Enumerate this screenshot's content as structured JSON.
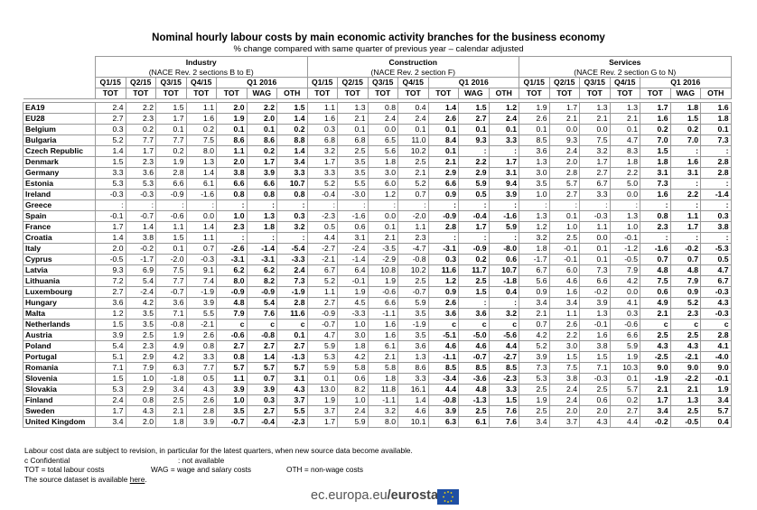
{
  "header": {
    "title": "Nominal hourly labour costs by main economic activity branches for the business economy",
    "subtitle": "% change compared with same quarter of previous year – calendar adjusted"
  },
  "table": {
    "groups": [
      {
        "name": "Industry",
        "sub": "(NACE Rev. 2 sections B to E)",
        "quarters": [
          "Q1/15",
          "Q2/15",
          "Q3/15",
          "Q4/15",
          "Q1 2016"
        ],
        "measures": [
          "TOT",
          "TOT",
          "TOT",
          "TOT",
          "TOT",
          "WAG",
          "OTH"
        ]
      },
      {
        "name": "Construction",
        "sub": "(NACE Rev. 2 section F)",
        "quarters": [
          "Q1/15",
          "Q2/15",
          "Q3/15",
          "Q4/15",
          "Q1 2016"
        ],
        "measures": [
          "TOT",
          "TOT",
          "TOT",
          "TOT",
          "TOT",
          "WAG",
          "OTH"
        ]
      },
      {
        "name": "Services",
        "sub": "(NACE Rev. 2 section G to N)",
        "quarters": [
          "Q1/15",
          "Q2/15",
          "Q3/15",
          "Q4/15",
          "Q1 2016"
        ],
        "measures": [
          "TOT",
          "TOT",
          "TOT",
          "TOT",
          "TOT",
          "WAG",
          "OTH"
        ]
      }
    ],
    "rows": [
      {
        "country": "EA19",
        "values": [
          "2.4",
          "2.2",
          "1.5",
          "1.1",
          "2.0",
          "2.2",
          "1.5",
          "1.1",
          "1.3",
          "0.8",
          "0.4",
          "1.4",
          "1.5",
          "1.2",
          "1.9",
          "1.7",
          "1.3",
          "1.3",
          "1.7",
          "1.8",
          "1.6"
        ]
      },
      {
        "country": "EU28",
        "values": [
          "2.7",
          "2.3",
          "1.7",
          "1.6",
          "1.9",
          "2.0",
          "1.4",
          "1.6",
          "2.1",
          "2.4",
          "2.4",
          "2.6",
          "2.7",
          "2.4",
          "2.6",
          "2.1",
          "2.1",
          "2.1",
          "1.6",
          "1.5",
          "1.8"
        ]
      },
      {
        "country": "Belgium",
        "values": [
          "0.3",
          "0.2",
          "0.1",
          "0.2",
          "0.1",
          "0.1",
          "0.2",
          "0.3",
          "0.1",
          "0.0",
          "0.1",
          "0.1",
          "0.1",
          "0.1",
          "0.1",
          "0.0",
          "0.0",
          "0.1",
          "0.2",
          "0.2",
          "0.1"
        ]
      },
      {
        "country": "Bulgaria",
        "values": [
          "5.2",
          "7.7",
          "7.7",
          "7.5",
          "8.6",
          "8.6",
          "8.8",
          "6.8",
          "6.8",
          "6.5",
          "11.0",
          "8.4",
          "9.3",
          "3.3",
          "8.5",
          "9.3",
          "7.5",
          "4.7",
          "7.0",
          "7.0",
          "7.3"
        ]
      },
      {
        "country": "Czech Republic",
        "values": [
          "1.4",
          "1.7",
          "0.2",
          "8.0",
          "1.1",
          "0.2",
          "1.4",
          "3.2",
          "2.5",
          "5.6",
          "10.2",
          "0.1",
          ":",
          ":",
          "3.6",
          "2.4",
          "3.2",
          "8.3",
          "1.5",
          ":",
          ":"
        ]
      },
      {
        "country": "Denmark",
        "values": [
          "1.5",
          "2.3",
          "1.9",
          "1.3",
          "2.0",
          "1.7",
          "3.4",
          "1.7",
          "3.5",
          "1.8",
          "2.5",
          "2.1",
          "2.2",
          "1.7",
          "1.3",
          "2.0",
          "1.7",
          "1.8",
          "1.8",
          "1.6",
          "2.8"
        ]
      },
      {
        "country": "Germany",
        "values": [
          "3.3",
          "3.6",
          "2.8",
          "1.4",
          "3.8",
          "3.9",
          "3.3",
          "3.3",
          "3.5",
          "3.0",
          "2.1",
          "2.9",
          "2.9",
          "3.1",
          "3.0",
          "2.8",
          "2.7",
          "2.2",
          "3.1",
          "3.1",
          "2.8"
        ]
      },
      {
        "country": "Estonia",
        "values": [
          "5.3",
          "5.3",
          "6.6",
          "6.1",
          "6.6",
          "6.6",
          "10.7",
          "5.2",
          "5.5",
          "6.0",
          "5.2",
          "6.6",
          "5.9",
          "9.4",
          "3.5",
          "5.7",
          "6.7",
          "5.0",
          "7.3",
          ":",
          ":"
        ]
      },
      {
        "country": "Ireland",
        "values": [
          "-0.3",
          "-0.3",
          "-0.9",
          "-1.6",
          "0.8",
          "0.8",
          "0.8",
          "-0.4",
          "-3.0",
          "1.2",
          "0.7",
          "0.9",
          "0.5",
          "3.9",
          "1.0",
          "2.7",
          "3.3",
          "0.0",
          "1.6",
          "2.2",
          "-1.4"
        ]
      },
      {
        "country": "Greece",
        "values": [
          ":",
          ":",
          ":",
          ":",
          ":",
          ":",
          ":",
          ":",
          ":",
          ":",
          ":",
          ":",
          ":",
          ":",
          ":",
          ":",
          ":",
          ":",
          ":",
          ":",
          ":"
        ]
      },
      {
        "country": "Spain",
        "values": [
          "-0.1",
          "-0.7",
          "-0.6",
          "0.0",
          "1.0",
          "1.3",
          "0.3",
          "-2.3",
          "-1.6",
          "0.0",
          "-2.0",
          "-0.9",
          "-0.4",
          "-1.6",
          "1.3",
          "0.1",
          "-0.3",
          "1.3",
          "0.8",
          "1.1",
          "0.3"
        ]
      },
      {
        "country": "France",
        "values": [
          "1.7",
          "1.4",
          "1.1",
          "1.4",
          "2.3",
          "1.8",
          "3.2",
          "0.5",
          "0.6",
          "0.1",
          "1.1",
          "2.8",
          "1.7",
          "5.9",
          "1.2",
          "1.0",
          "1.1",
          "1.0",
          "2.3",
          "1.7",
          "3.8"
        ]
      },
      {
        "country": "Croatia",
        "values": [
          "1.4",
          "3.8",
          "1.5",
          "1.1",
          ":",
          ":",
          ":",
          "4.4",
          "3.1",
          "2.1",
          "2.3",
          ":",
          ":",
          ":",
          "3.2",
          "2.5",
          "0.0",
          "-0.1",
          ":",
          ":",
          ":"
        ]
      },
      {
        "country": "Italy",
        "values": [
          "2.0",
          "-0.2",
          "0.1",
          "0.7",
          "-2.6",
          "-1.4",
          "-5.4",
          "-2.7",
          "-2.4",
          "-3.5",
          "-4.7",
          "-3.1",
          "-0.9",
          "-8.0",
          "1.8",
          "-0.1",
          "0.1",
          "-1.2",
          "-1.6",
          "-0.2",
          "-5.3"
        ]
      },
      {
        "country": "Cyprus",
        "values": [
          "-0.5",
          "-1.7",
          "-2.0",
          "-0.3",
          "-3.1",
          "-3.1",
          "-3.3",
          "-2.1",
          "-1.4",
          "-2.9",
          "-0.8",
          "0.3",
          "0.2",
          "0.6",
          "-1.7",
          "-0.1",
          "0.1",
          "-0.5",
          "0.7",
          "0.7",
          "0.5"
        ]
      },
      {
        "country": "Latvia",
        "values": [
          "9.3",
          "6.9",
          "7.5",
          "9.1",
          "6.2",
          "6.2",
          "2.4",
          "6.7",
          "6.4",
          "10.8",
          "10.2",
          "11.6",
          "11.7",
          "10.7",
          "6.7",
          "6.0",
          "7.3",
          "7.9",
          "4.8",
          "4.8",
          "4.7"
        ]
      },
      {
        "country": "Lithuania",
        "values": [
          "7.2",
          "5.4",
          "7.7",
          "7.4",
          "8.0",
          "8.2",
          "7.3",
          "5.2",
          "-0.1",
          "1.9",
          "2.5",
          "1.2",
          "2.5",
          "-1.8",
          "5.6",
          "4.6",
          "6.6",
          "4.2",
          "7.5",
          "7.9",
          "6.7"
        ]
      },
      {
        "country": "Luxembourg",
        "values": [
          "2.7",
          "-2.4",
          "-0.7",
          "-1.9",
          "-0.9",
          "-0.9",
          "-1.9",
          "1.1",
          "1.9",
          "-0.6",
          "-0.7",
          "0.9",
          "1.5",
          "0.4",
          "0.9",
          "1.6",
          "-0.2",
          "0.0",
          "0.6",
          "0.9",
          "-0.3"
        ]
      },
      {
        "country": "Hungary",
        "values": [
          "3.6",
          "4.2",
          "3.6",
          "3.9",
          "4.8",
          "5.4",
          "2.8",
          "2.7",
          "4.5",
          "6.6",
          "5.9",
          "2.6",
          ":",
          ":",
          "3.4",
          "3.4",
          "3.9",
          "4.1",
          "4.9",
          "5.2",
          "4.3"
        ]
      },
      {
        "country": "Malta",
        "values": [
          "1.2",
          "3.5",
          "7.1",
          "5.5",
          "7.9",
          "7.6",
          "11.6",
          "-0.9",
          "-3.3",
          "-1.1",
          "3.5",
          "3.6",
          "3.6",
          "3.2",
          "2.1",
          "1.1",
          "1.3",
          "0.3",
          "2.1",
          "2.3",
          "-0.3"
        ]
      },
      {
        "country": "Netherlands",
        "values": [
          "1.5",
          "3.5",
          "-0.8",
          "-2.1",
          "c",
          "c",
          "c",
          "-0.7",
          "1.0",
          "1.6",
          "-1.9",
          "c",
          "c",
          "c",
          "0.7",
          "2.6",
          "-0.1",
          "-0.6",
          "c",
          "c",
          "c"
        ]
      },
      {
        "country": "Austria",
        "values": [
          "3.9",
          "2.5",
          "1.9",
          "2.6",
          "-0.6",
          "-0.8",
          "0.1",
          "4.7",
          "3.0",
          "1.6",
          "3.5",
          "-5.1",
          "-5.0",
          "-5.6",
          "4.2",
          "2.2",
          "1.6",
          "6.6",
          "2.5",
          "2.5",
          "2.8"
        ]
      },
      {
        "country": "Poland",
        "values": [
          "5.4",
          "2.3",
          "4.9",
          "0.8",
          "2.7",
          "2.7",
          "2.7",
          "5.9",
          "1.8",
          "6.1",
          "3.6",
          "4.6",
          "4.6",
          "4.4",
          "5.2",
          "3.0",
          "3.8",
          "5.9",
          "4.3",
          "4.3",
          "4.1"
        ]
      },
      {
        "country": "Portugal",
        "values": [
          "5.1",
          "2.9",
          "4.2",
          "3.3",
          "0.8",
          "1.4",
          "-1.3",
          "5.3",
          "4.2",
          "2.1",
          "1.3",
          "-1.1",
          "-0.7",
          "-2.7",
          "3.9",
          "1.5",
          "1.5",
          "1.9",
          "-2.5",
          "-2.1",
          "-4.0"
        ]
      },
      {
        "country": "Romania",
        "values": [
          "7.1",
          "7.9",
          "6.3",
          "7.7",
          "5.7",
          "5.7",
          "5.7",
          "5.9",
          "5.8",
          "5.8",
          "8.6",
          "8.5",
          "8.5",
          "8.5",
          "7.3",
          "7.5",
          "7.1",
          "10.3",
          "9.0",
          "9.0",
          "9.0"
        ]
      },
      {
        "country": "Slovenia",
        "values": [
          "1.5",
          "1.0",
          "-1.8",
          "0.5",
          "1.1",
          "0.7",
          "3.1",
          "0.1",
          "0.6",
          "1.8",
          "3.3",
          "-3.4",
          "-3.6",
          "-2.3",
          "5.3",
          "3.8",
          "-0.3",
          "0.1",
          "-1.9",
          "-2.2",
          "-0.1"
        ]
      },
      {
        "country": "Slovakia",
        "values": [
          "5.3",
          "2.9",
          "3.4",
          "4.3",
          "3.9",
          "3.9",
          "4.3",
          "13.0",
          "8.2",
          "11.8",
          "16.1",
          "4.4",
          "4.8",
          "3.3",
          "2.5",
          "2.4",
          "2.5",
          "5.7",
          "2.1",
          "2.1",
          "1.9"
        ]
      },
      {
        "country": "Finland",
        "values": [
          "2.4",
          "0.8",
          "2.5",
          "2.6",
          "1.0",
          "0.3",
          "3.7",
          "1.9",
          "1.0",
          "-1.1",
          "1.4",
          "-0.8",
          "-1.3",
          "1.5",
          "1.9",
          "2.4",
          "0.6",
          "0.2",
          "1.7",
          "1.3",
          "3.4"
        ]
      },
      {
        "country": "Sweden",
        "values": [
          "1.7",
          "4.3",
          "2.1",
          "2.8",
          "3.5",
          "2.7",
          "5.5",
          "3.7",
          "2.4",
          "3.2",
          "4.6",
          "3.9",
          "2.5",
          "7.6",
          "2.5",
          "2.0",
          "2.0",
          "2.7",
          "3.4",
          "2.5",
          "5.7"
        ]
      },
      {
        "country": "United Kingdom",
        "values": [
          "3.4",
          "2.0",
          "1.8",
          "3.9",
          "-0.7",
          "-0.4",
          "-2.3",
          "1.7",
          "5.9",
          "8.0",
          "10.1",
          "6.3",
          "6.1",
          "7.6",
          "3.4",
          "3.7",
          "4.3",
          "4.4",
          "-0.2",
          "-0.5",
          "0.4"
        ]
      }
    ]
  },
  "notes": {
    "revision": "Labour cost data are subject to revision, in particular for the latest quarters, when new source data become available.",
    "confidential": "c Confidential",
    "not_available": ": not available",
    "tot": "TOT = total labour costs",
    "wag": "WAG = wage and salary costs",
    "oth": "OTH = non-wage costs",
    "source": "The source dataset is available",
    "link": "here",
    "period": "."
  },
  "footer": {
    "site": "ec.europa.eu",
    "brand": "/eurostat"
  }
}
